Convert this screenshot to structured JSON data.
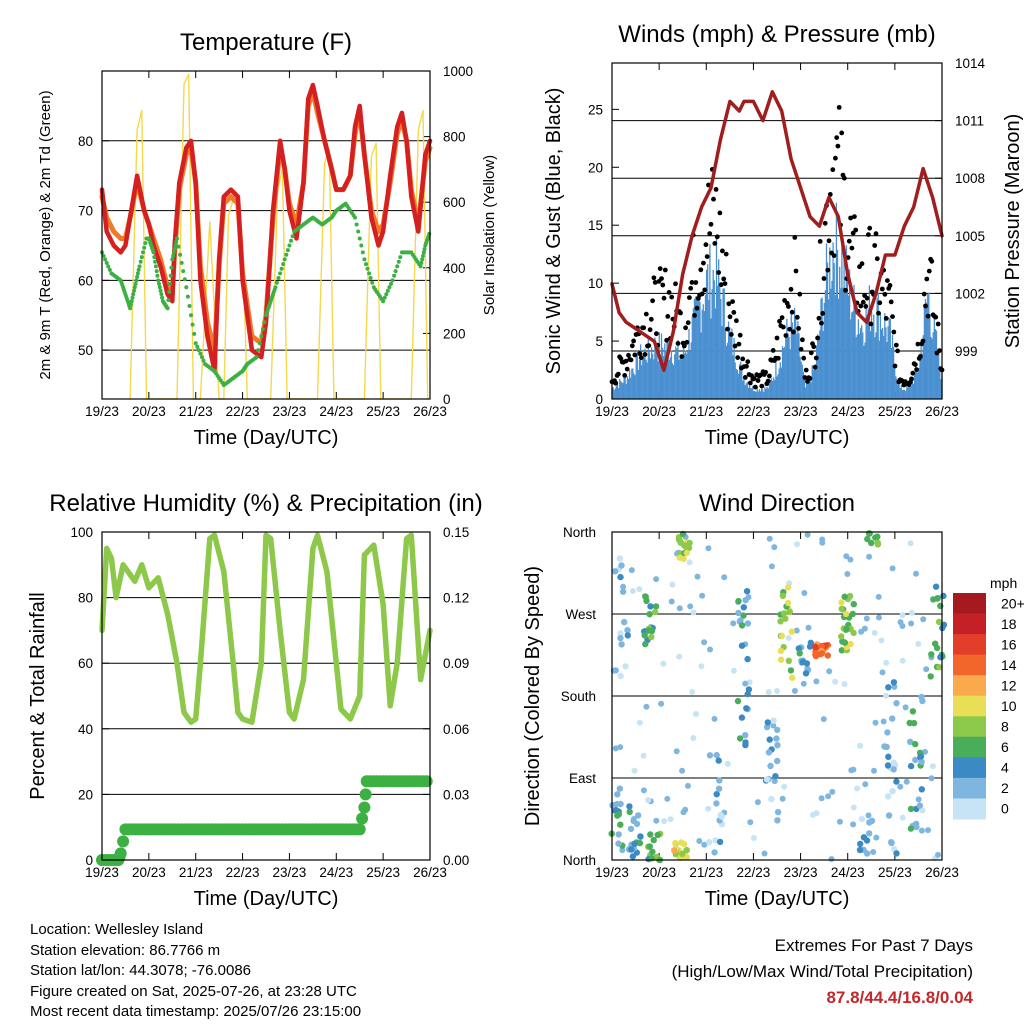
{
  "chart_data": [
    {
      "type": "line",
      "title": "Temperature (F)",
      "xlabel": "Time (Day/UTC)",
      "ylabel": "2m & 9m T (Red, Orange) & 2m Td (Green)",
      "y2label": "Solar Insolation (Yellow)",
      "x_ticks": [
        "19/23",
        "20/23",
        "21/23",
        "22/23",
        "23/23",
        "24/23",
        "25/23",
        "26/23"
      ],
      "ylim": [
        43,
        90
      ],
      "y_ticks": [
        50,
        60,
        70,
        80
      ],
      "y2lim": [
        0,
        1000
      ],
      "y2_ticks": [
        0,
        200,
        400,
        600,
        800,
        1000
      ],
      "colors": {
        "t2m": "#d42020",
        "t9m": "#f07a28",
        "td": "#3cb043",
        "solar": "#f6d84a"
      },
      "series": [
        {
          "name": "2m T",
          "x": [
            0,
            0.1,
            0.25,
            0.4,
            0.5,
            0.6,
            0.75,
            0.9,
            1.0,
            1.1,
            1.25,
            1.4,
            1.5,
            1.55,
            1.65,
            1.8,
            1.9,
            2.0,
            2.1,
            2.25,
            2.4,
            2.5,
            2.6,
            2.75,
            2.9,
            3.0,
            3.2,
            3.4,
            3.5,
            3.65,
            3.8,
            3.9,
            4.0,
            4.15,
            4.3,
            4.4,
            4.5,
            4.6,
            4.75,
            4.9,
            5.0,
            5.15,
            5.3,
            5.4,
            5.5,
            5.6,
            5.75,
            5.9,
            6.0,
            6.15,
            6.3,
            6.4,
            6.5,
            6.6,
            6.75,
            6.9,
            7.0
          ],
          "values": [
            73,
            67,
            65,
            64,
            65,
            69,
            75,
            70,
            68,
            65,
            62,
            58,
            57,
            65,
            74,
            79,
            80,
            74,
            60,
            52,
            47,
            63,
            72,
            73,
            72,
            60,
            50,
            49,
            54,
            70,
            80,
            76,
            70,
            66,
            74,
            86,
            88,
            85,
            80,
            76,
            73,
            73,
            75,
            82,
            85,
            78,
            69,
            65,
            67,
            75,
            82,
            84,
            80,
            72,
            67,
            78,
            80
          ]
        },
        {
          "name": "9m T",
          "x": [
            0,
            0.1,
            0.25,
            0.4,
            0.5,
            0.6,
            0.75,
            0.9,
            1.0,
            1.1,
            1.25,
            1.4,
            1.5,
            1.55,
            1.65,
            1.8,
            1.9,
            2.0,
            2.1,
            2.25,
            2.4,
            2.5,
            2.6,
            2.75,
            2.9,
            3.0,
            3.2,
            3.4,
            3.5,
            3.65,
            3.8,
            3.9,
            4.0,
            4.15,
            4.3,
            4.4,
            4.5,
            4.6,
            4.75,
            4.9,
            5.0,
            5.15,
            5.3,
            5.4,
            5.5,
            5.6,
            5.75,
            5.9,
            6.0,
            6.15,
            6.3,
            6.4,
            6.5,
            6.6,
            6.75,
            6.9,
            7.0
          ],
          "values": [
            72,
            69,
            67,
            66,
            66,
            69,
            74,
            70,
            68,
            66,
            63,
            59,
            58,
            64,
            73,
            78,
            79,
            74,
            62,
            54,
            50,
            62,
            71,
            72,
            71,
            61,
            52,
            51,
            55,
            69,
            79,
            76,
            71,
            68,
            74,
            85,
            87,
            84,
            80,
            76,
            73,
            73,
            75,
            81,
            84,
            78,
            70,
            67,
            68,
            74,
            81,
            83,
            80,
            73,
            68,
            77,
            79
          ]
        },
        {
          "name": "2m Td",
          "x": [
            0,
            0.2,
            0.4,
            0.5,
            0.6,
            0.7,
            0.8,
            0.95,
            1.0,
            1.1,
            1.2,
            1.3,
            1.4,
            1.5,
            1.6,
            1.8,
            2.0,
            2.2,
            2.4,
            2.6,
            2.8,
            3.0,
            3.1,
            3.3,
            3.5,
            3.6,
            3.7,
            3.9,
            4.1,
            4.3,
            4.5,
            4.7,
            4.9,
            5.0,
            5.2,
            5.4,
            5.6,
            5.8,
            6.0,
            6.2,
            6.4,
            6.6,
            6.8,
            6.9,
            7.0
          ],
          "values": [
            64,
            61,
            60,
            58,
            56,
            59,
            62,
            66,
            66,
            64,
            60,
            57,
            56,
            63,
            66,
            59,
            51,
            48,
            47,
            45,
            46,
            47,
            48,
            49,
            55,
            57,
            59,
            63,
            67,
            68,
            69,
            68,
            69,
            70,
            71,
            69,
            63,
            59,
            57,
            60,
            64,
            64,
            62,
            65,
            67
          ]
        },
        {
          "name": "Solar Insolation",
          "x": [
            0.6,
            0.75,
            0.85,
            0.95,
            1.6,
            1.75,
            1.85,
            1.95,
            2.1,
            2.3,
            2.5,
            2.6,
            2.7,
            2.85,
            3.0,
            3.1,
            3.6,
            3.75,
            3.85,
            3.95,
            4.6,
            4.75,
            4.85,
            4.95,
            5.6,
            5.75,
            5.85,
            5.95,
            6.6,
            6.75,
            6.85,
            6.95
          ],
          "values": [
            0,
            820,
            880,
            0,
            0,
            960,
            990,
            0,
            0,
            540,
            0,
            0,
            560,
            630,
            480,
            0,
            0,
            640,
            700,
            0,
            0,
            720,
            760,
            0,
            0,
            740,
            780,
            0,
            0,
            820,
            880,
            0
          ]
        }
      ]
    },
    {
      "type": "scatter",
      "title": "Winds (mph) & Pressure (mb)",
      "xlabel": "Time (Day/UTC)",
      "ylabel": "Sonic Wind & Gust (Blue, Black)",
      "y2label": "Station Pressure (Maroon)",
      "x_ticks": [
        "19/23",
        "20/23",
        "21/23",
        "22/23",
        "23/23",
        "24/23",
        "25/23",
        "26/23"
      ],
      "ylim": [
        0,
        29
      ],
      "y_ticks": [
        0,
        5,
        10,
        15,
        20,
        25
      ],
      "y2lim": [
        996.5,
        1014
      ],
      "y2_ticks": [
        "999",
        "1002",
        "1005",
        "1008",
        "1011",
        "1014"
      ],
      "colors": {
        "wind": "#4a90d0",
        "gust": "#000000",
        "pressure": "#a01e1e"
      },
      "series": [
        {
          "name": "Wind",
          "x": [
            0,
            0.3,
            0.6,
            0.9,
            1.2,
            1.5,
            1.8,
            2.0,
            2.2,
            2.5,
            2.8,
            3.0,
            3.3,
            3.5,
            3.7,
            3.9,
            4.1,
            4.3,
            4.5,
            4.7,
            4.9,
            5.1,
            5.3,
            5.5,
            5.7,
            5.9,
            6.1,
            6.3,
            6.5,
            6.7,
            7.0
          ],
          "values": [
            1,
            2,
            4,
            5,
            5,
            4,
            8,
            11,
            12,
            6,
            2,
            1,
            1,
            3,
            6,
            7,
            1,
            3,
            10,
            15,
            13,
            9,
            7,
            9,
            8,
            6,
            1,
            1,
            3,
            10,
            2
          ]
        },
        {
          "name": "Gust",
          "x": [
            0,
            0.3,
            0.6,
            0.9,
            1.2,
            1.5,
            1.8,
            2.0,
            2.2,
            2.5,
            2.8,
            3.0,
            3.3,
            3.5,
            3.7,
            3.9,
            4.1,
            4.3,
            4.5,
            4.7,
            4.9,
            5.1,
            5.3,
            5.5,
            5.7,
            5.9,
            6.1,
            6.3,
            6.5,
            6.7,
            7.0
          ],
          "values": [
            2,
            4,
            7,
            9,
            10,
            7,
            14,
            17,
            18,
            9,
            4,
            2,
            2,
            5,
            10,
            12,
            2,
            5,
            16,
            24,
            20,
            14,
            11,
            13,
            11,
            9,
            2,
            2,
            5,
            13,
            3
          ]
        },
        {
          "name": "Pressure",
          "x": [
            0,
            0.15,
            0.3,
            0.6,
            0.9,
            1.1,
            1.3,
            1.5,
            1.7,
            1.9,
            2.1,
            2.3,
            2.5,
            2.7,
            2.8,
            3.0,
            3.2,
            3.4,
            3.6,
            3.8,
            4.0,
            4.2,
            4.4,
            4.6,
            4.8,
            5.0,
            5.2,
            5.4,
            5.6,
            5.8,
            6.0,
            6.2,
            6.4,
            6.6,
            6.8,
            7.0
          ],
          "values": [
            1002.5,
            1001,
            1000.5,
            1000,
            999.5,
            998,
            1000,
            1003,
            1005,
            1006.5,
            1007.5,
            1010,
            1012,
            1011.5,
            1012,
            1012,
            1011,
            1012.5,
            1011.5,
            1009,
            1007.5,
            1006,
            1005.5,
            1007,
            1006,
            1003,
            1001,
            1000.5,
            1002,
            1004,
            1004,
            1005.5,
            1006.5,
            1008.5,
            1007,
            1005
          ]
        }
      ]
    },
    {
      "type": "line",
      "title": "Relative Humidity (%) & Precipitation (in)",
      "xlabel": "Time (Day/UTC)",
      "ylabel": "Percent & Total Rainfall",
      "x_ticks": [
        "19/23",
        "20/23",
        "21/23",
        "22/23",
        "23/23",
        "24/23",
        "25/23",
        "26/23"
      ],
      "ylim": [
        0,
        100
      ],
      "y_ticks": [
        0,
        20,
        40,
        60,
        80,
        100
      ],
      "y2lim": [
        0,
        0.15
      ],
      "y2_ticks": [
        "0.00",
        "0.03",
        "0.06",
        "0.09",
        "0.12",
        "0.15"
      ],
      "colors": {
        "rh": "#8dc84a",
        "precip": "#3cb043"
      },
      "series": [
        {
          "name": "Relative Humidity",
          "x": [
            0,
            0.1,
            0.2,
            0.3,
            0.45,
            0.55,
            0.7,
            0.85,
            1.0,
            1.2,
            1.4,
            1.6,
            1.75,
            1.9,
            2.0,
            2.1,
            2.3,
            2.4,
            2.6,
            2.8,
            2.9,
            3.0,
            3.2,
            3.4,
            3.5,
            3.6,
            3.8,
            4.0,
            4.1,
            4.3,
            4.5,
            4.6,
            4.8,
            5.0,
            5.1,
            5.3,
            5.5,
            5.6,
            5.8,
            6.0,
            6.15,
            6.3,
            6.5,
            6.6,
            6.8,
            7.0
          ],
          "values": [
            70,
            95,
            92,
            80,
            90,
            88,
            85,
            90,
            83,
            86,
            75,
            60,
            45,
            42,
            43,
            60,
            98,
            99,
            88,
            60,
            45,
            43,
            42,
            60,
            99,
            98,
            70,
            45,
            43,
            55,
            95,
            99,
            88,
            60,
            46,
            43,
            50,
            93,
            96,
            78,
            47,
            60,
            98,
            99,
            55,
            70
          ]
        },
        {
          "name": "Precipitation",
          "x": [
            0,
            0.35,
            0.4,
            0.5,
            1.2,
            5.5,
            5.6,
            5.65,
            7.0
          ],
          "values": [
            0,
            0,
            0.003,
            0.014,
            0.014,
            0.014,
            0.024,
            0.036,
            0.036
          ]
        }
      ]
    },
    {
      "type": "scatter",
      "title": "Wind Direction",
      "xlabel": "Time (Day/UTC)",
      "ylabel": "Direction (Colored By Speed)",
      "x_ticks": [
        "19/23",
        "20/23",
        "21/23",
        "22/23",
        "23/23",
        "24/23",
        "25/23",
        "26/23"
      ],
      "y_ticks": [
        "North",
        "East",
        "South",
        "West",
        "North"
      ],
      "ylim": [
        0,
        360
      ],
      "colorbar_title": "mph",
      "colorbar_labels": [
        "20+",
        "18",
        "16",
        "14",
        "12",
        "10",
        "8",
        "6",
        "4",
        "2",
        "0"
      ],
      "colorbar_colors": [
        "#a51a1e",
        "#c42127",
        "#e23e2a",
        "#f2662c",
        "#fba94d",
        "#e9df57",
        "#8cc84a",
        "#49ad5a",
        "#3c8ac4",
        "#7fb6e0",
        "#c6e4f5"
      ],
      "clusters": [
        {
          "x": 0.1,
          "y0": 10,
          "y1": 80,
          "speed": 4,
          "n": 14
        },
        {
          "x": 0.5,
          "y0": 0,
          "y1": 60,
          "speed": 4,
          "n": 18
        },
        {
          "x": 0.9,
          "y0": 0,
          "y1": 30,
          "speed": 6,
          "n": 14
        },
        {
          "x": 0.2,
          "y0": 200,
          "y1": 340,
          "speed": 2,
          "n": 14
        },
        {
          "x": 0.8,
          "y0": 230,
          "y1": 290,
          "speed": 6,
          "n": 18
        },
        {
          "x": 1.45,
          "y0": 0,
          "y1": 20,
          "speed": 10,
          "n": 20
        },
        {
          "x": 1.55,
          "y0": 330,
          "y1": 360,
          "speed": 8,
          "n": 16
        },
        {
          "x": 2.2,
          "y0": 0,
          "y1": 120,
          "speed": 2,
          "n": 14
        },
        {
          "x": 2.8,
          "y0": 120,
          "y1": 300,
          "speed": 4,
          "n": 22
        },
        {
          "x": 3.4,
          "y0": 40,
          "y1": 160,
          "speed": 2,
          "n": 18
        },
        {
          "x": 3.7,
          "y0": 200,
          "y1": 300,
          "speed": 8,
          "n": 20
        },
        {
          "x": 4.1,
          "y0": 200,
          "y1": 240,
          "speed": 4,
          "n": 14
        },
        {
          "x": 4.45,
          "y0": 222,
          "y1": 238,
          "speed": 14,
          "n": 26
        },
        {
          "x": 5.0,
          "y0": 230,
          "y1": 290,
          "speed": 8,
          "n": 24
        },
        {
          "x": 5.4,
          "y0": 0,
          "y1": 60,
          "speed": 2,
          "n": 10
        },
        {
          "x": 5.9,
          "y0": 0,
          "y1": 200,
          "speed": 2,
          "n": 20
        },
        {
          "x": 6.45,
          "y0": 30,
          "y1": 180,
          "speed": 4,
          "n": 22
        },
        {
          "x": 6.9,
          "y0": 200,
          "y1": 310,
          "speed": 6,
          "n": 18
        },
        {
          "x": 5.5,
          "y0": 340,
          "y1": 360,
          "speed": 6,
          "n": 8
        }
      ]
    }
  ],
  "info": {
    "location": "Location: Wellesley Island",
    "elevation": "Station elevation: 86.7766 m",
    "latlon": "Station lat/lon: 44.3078; -76.0086",
    "created": "Figure created on Sat, 2025-07-26, at 23:28 UTC",
    "latest": "Most recent data timestamp: 2025/07/26 23:15:00"
  },
  "extremes": {
    "title": "Extremes For Past 7 Days",
    "subtitle": "(High/Low/Max Wind/Total Precipitation)",
    "values": "87.8/44.4/16.8/0.04"
  }
}
